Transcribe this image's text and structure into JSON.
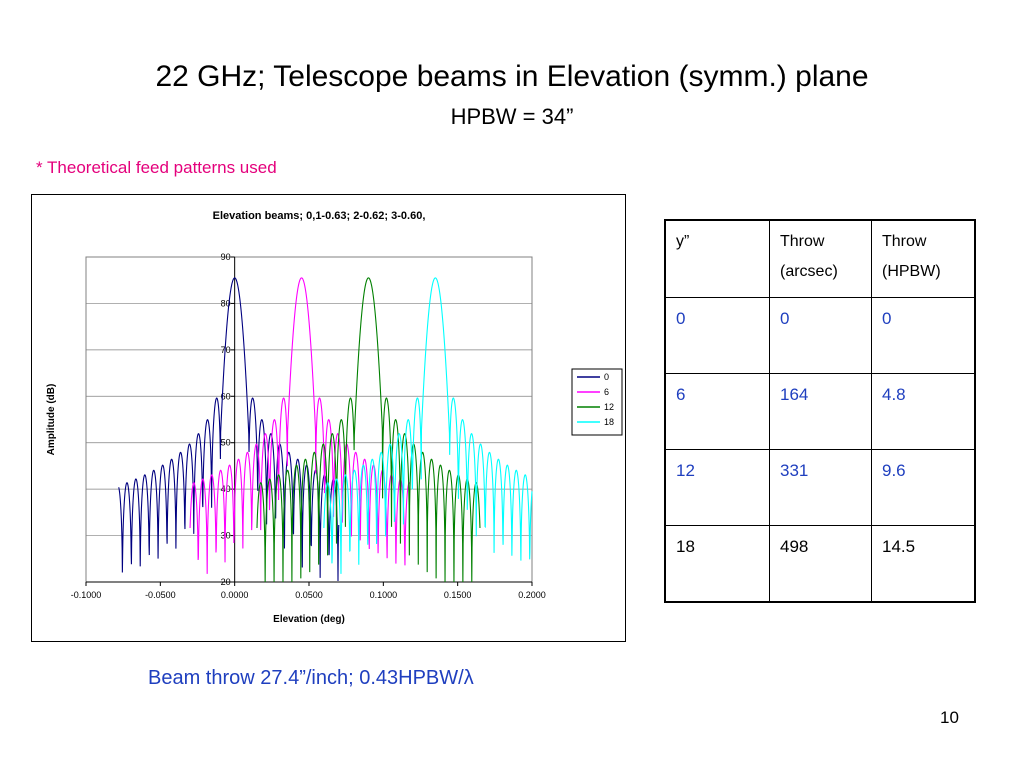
{
  "slide": {
    "title": "22 GHz; Telescope beams in Elevation (symm.) plane",
    "subtitle": "HPBW = 34”",
    "note": "* Theoretical feed patterns used",
    "caption": "Beam throw 27.4”/inch; 0.43HPBW/λ",
    "page_number": "10"
  },
  "table": {
    "headers": [
      {
        "line1": "y”",
        "line2": ""
      },
      {
        "line1": "Throw",
        "line2": "(arcsec)"
      },
      {
        "line1": "Throw",
        "line2": "(HPBW)"
      }
    ],
    "rows": [
      [
        "0",
        "0",
        "0"
      ],
      [
        "6",
        "164",
        "4.8"
      ],
      [
        "12",
        "331",
        "9.6"
      ],
      [
        "18",
        "498",
        "14.5"
      ]
    ]
  },
  "colors": {
    "note": "#e4007c",
    "caption": "#1f3fbf",
    "series_0": "#000080",
    "series_6": "#ff00ff",
    "series_12": "#008000",
    "series_18": "#00ffff"
  },
  "chart_data": {
    "type": "line",
    "title": "Elevation beams; 0,1-0.63;  2-0.62;  3-0.60,",
    "xlabel": "Elevation (deg)",
    "ylabel": "Amplitude (dB)",
    "xlim": [
      -0.1,
      0.2
    ],
    "ylim": [
      20,
      90
    ],
    "x_ticks": [
      "-0.1000",
      "-0.0500",
      "0.0000",
      "0.0500",
      "0.1000",
      "0.1500",
      "0.2000"
    ],
    "y_ticks": [
      "20",
      "30",
      "40",
      "50",
      "60",
      "70",
      "80",
      "90"
    ],
    "grid": "horizontal",
    "legend_position": "right",
    "series": [
      {
        "name": "0",
        "color": "#000080",
        "peak_x": 0.0,
        "peak_y": 85.5,
        "x_range": [
          -0.078,
          0.07
        ],
        "sidelobe_peaks": [
          [
            0.012,
            63
          ],
          [
            0.018,
            51
          ],
          [
            0.024,
            46.5
          ],
          [
            0.03,
            43
          ],
          [
            0.036,
            41
          ],
          [
            0.042,
            39
          ],
          [
            0.048,
            38
          ],
          [
            0.054,
            37
          ],
          [
            0.06,
            36
          ],
          [
            0.066,
            35.5
          ],
          [
            -0.012,
            63
          ],
          [
            -0.018,
            51
          ],
          [
            -0.024,
            46.5
          ],
          [
            -0.03,
            43
          ],
          [
            -0.036,
            41
          ],
          [
            -0.042,
            39
          ],
          [
            -0.048,
            38
          ],
          [
            -0.054,
            37
          ],
          [
            -0.06,
            36
          ],
          [
            -0.066,
            35.5
          ],
          [
            -0.072,
            36.5
          ]
        ]
      },
      {
        "name": "6",
        "color": "#ff00ff",
        "peak_x": 0.045,
        "peak_y": 85.5,
        "x_range": [
          -0.03,
          0.118
        ],
        "sidelobe_peaks": [
          [
            0.06,
            63
          ],
          [
            0.066,
            51
          ],
          [
            0.072,
            46.5
          ],
          [
            0.078,
            43
          ],
          [
            0.084,
            41
          ],
          [
            0.09,
            39
          ],
          [
            0.096,
            38
          ],
          [
            0.102,
            37
          ],
          [
            0.108,
            36
          ],
          [
            0.114,
            35.5
          ],
          [
            0.03,
            63
          ],
          [
            0.024,
            51
          ],
          [
            0.018,
            46.5
          ],
          [
            0.012,
            43
          ],
          [
            0.006,
            41
          ],
          [
            0.0,
            39
          ],
          [
            -0.006,
            38
          ],
          [
            -0.012,
            37
          ],
          [
            -0.018,
            36
          ],
          [
            -0.024,
            35.5
          ]
        ]
      },
      {
        "name": "12",
        "color": "#008000",
        "peak_x": 0.09,
        "peak_y": 85.5,
        "x_range": [
          0.015,
          0.165
        ],
        "sidelobe_peaks": [
          [
            0.105,
            63
          ],
          [
            0.111,
            51
          ],
          [
            0.117,
            46.5
          ],
          [
            0.123,
            43
          ],
          [
            0.129,
            41
          ],
          [
            0.135,
            39
          ],
          [
            0.141,
            38
          ],
          [
            0.147,
            37
          ],
          [
            0.153,
            36
          ],
          [
            0.159,
            35.5
          ],
          [
            0.075,
            63
          ],
          [
            0.069,
            51
          ],
          [
            0.063,
            46.5
          ],
          [
            0.057,
            43
          ],
          [
            0.051,
            41
          ],
          [
            0.045,
            39
          ],
          [
            0.039,
            38
          ],
          [
            0.033,
            37
          ],
          [
            0.027,
            36
          ],
          [
            0.021,
            35.5
          ]
        ]
      },
      {
        "name": "18",
        "color": "#00ffff",
        "peak_x": 0.135,
        "peak_y": 85.5,
        "x_range": [
          0.06,
          0.2
        ],
        "sidelobe_peaks": [
          [
            0.15,
            63
          ],
          [
            0.156,
            51
          ],
          [
            0.162,
            46.5
          ],
          [
            0.168,
            43
          ],
          [
            0.174,
            41
          ],
          [
            0.18,
            39
          ],
          [
            0.186,
            38
          ],
          [
            0.192,
            37
          ],
          [
            0.198,
            36
          ],
          [
            0.12,
            63
          ],
          [
            0.114,
            51
          ],
          [
            0.108,
            46.5
          ],
          [
            0.102,
            43
          ],
          [
            0.096,
            41
          ],
          [
            0.09,
            39
          ],
          [
            0.084,
            38
          ],
          [
            0.078,
            37
          ],
          [
            0.072,
            36
          ],
          [
            0.066,
            35.5
          ]
        ]
      }
    ]
  }
}
